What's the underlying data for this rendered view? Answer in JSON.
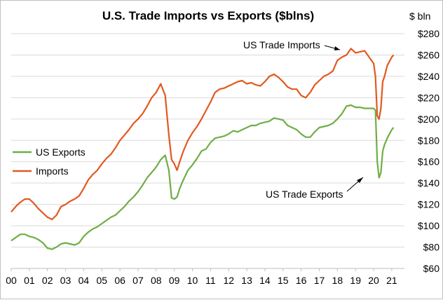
{
  "chart_data": {
    "type": "line",
    "title": "U.S. Trade Imports vs Exports ($blns)",
    "y_unit_label": "$ bln",
    "ylim": [
      60,
      280
    ],
    "xlim": [
      2000,
      2021.7
    ],
    "y_ticks": [
      "$60",
      "$80",
      "$100",
      "$120",
      "$140",
      "$160",
      "$180",
      "$200",
      "$220",
      "$240",
      "$260",
      "$280"
    ],
    "y_tick_values": [
      60,
      80,
      100,
      120,
      140,
      160,
      180,
      200,
      220,
      240,
      260,
      280
    ],
    "x_ticks": [
      "00",
      "01",
      "02",
      "03",
      "04",
      "05",
      "06",
      "07",
      "08",
      "09",
      "10",
      "11",
      "12",
      "13",
      "14",
      "15",
      "16",
      "17",
      "18",
      "19",
      "20",
      "21"
    ],
    "x_tick_values": [
      2000,
      2001,
      2002,
      2003,
      2004,
      2005,
      2006,
      2007,
      2008,
      2009,
      2010,
      2011,
      2012,
      2013,
      2014,
      2015,
      2016,
      2017,
      2018,
      2019,
      2020,
      2021
    ],
    "grid": true,
    "legend_position": "left-middle",
    "colors": {
      "exports": "#70ad47",
      "imports": "#e2591f",
      "grid": "#d9d9d9"
    },
    "series": [
      {
        "name": "US Exports",
        "color": "#70ad47",
        "x": [
          2000,
          2000.25,
          2000.5,
          2000.75,
          2001,
          2001.25,
          2001.5,
          2001.75,
          2002,
          2002.25,
          2002.5,
          2002.75,
          2003,
          2003.25,
          2003.5,
          2003.75,
          2004,
          2004.25,
          2004.5,
          2004.75,
          2005,
          2005.25,
          2005.5,
          2005.75,
          2006,
          2006.25,
          2006.5,
          2006.75,
          2007,
          2007.25,
          2007.5,
          2007.75,
          2008,
          2008.25,
          2008.5,
          2008.7,
          2008.85,
          2009,
          2009.15,
          2009.3,
          2009.5,
          2009.75,
          2010,
          2010.25,
          2010.5,
          2010.75,
          2011,
          2011.25,
          2011.5,
          2011.75,
          2012,
          2012.25,
          2012.5,
          2012.75,
          2013,
          2013.25,
          2013.5,
          2013.75,
          2014,
          2014.25,
          2014.5,
          2014.75,
          2015,
          2015.25,
          2015.5,
          2015.75,
          2016,
          2016.25,
          2016.5,
          2016.75,
          2017,
          2017.25,
          2017.5,
          2017.75,
          2018,
          2018.25,
          2018.5,
          2018.75,
          2019,
          2019.25,
          2019.5,
          2019.75,
          2020,
          2020.1,
          2020.2,
          2020.3,
          2020.4,
          2020.5,
          2020.6,
          2020.75,
          2021,
          2021.1
        ],
        "values": [
          86,
          89,
          92,
          92,
          90,
          89,
          87,
          84,
          79,
          78,
          80,
          83,
          84,
          83,
          82,
          84,
          90,
          94,
          97,
          99,
          102,
          105,
          108,
          110,
          114,
          118,
          123,
          127,
          132,
          138,
          145,
          150,
          155,
          162,
          166,
          152,
          126,
          125,
          127,
          135,
          143,
          152,
          157,
          163,
          170,
          172,
          178,
          182,
          183,
          184,
          186,
          189,
          188,
          190,
          192,
          194,
          194,
          196,
          197,
          198,
          201,
          200,
          199,
          194,
          192,
          190,
          186,
          183,
          183,
          188,
          192,
          193,
          194,
          196,
          200,
          205,
          212,
          213,
          211,
          211,
          210,
          210,
          210,
          208,
          160,
          145,
          150,
          170,
          176,
          182,
          190,
          192
        ]
      },
      {
        "name": "Imports",
        "color": "#e2591f",
        "x": [
          2000,
          2000.25,
          2000.5,
          2000.75,
          2001,
          2001.25,
          2001.5,
          2001.75,
          2002,
          2002.25,
          2002.5,
          2002.75,
          2003,
          2003.25,
          2003.5,
          2003.75,
          2004,
          2004.25,
          2004.5,
          2004.75,
          2005,
          2005.25,
          2005.5,
          2005.75,
          2006,
          2006.25,
          2006.5,
          2006.75,
          2007,
          2007.25,
          2007.5,
          2007.75,
          2008,
          2008.25,
          2008.5,
          2008.7,
          2008.85,
          2009,
          2009.15,
          2009.3,
          2009.5,
          2009.75,
          2010,
          2010.25,
          2010.5,
          2010.75,
          2011,
          2011.25,
          2011.5,
          2011.75,
          2012,
          2012.25,
          2012.5,
          2012.75,
          2013,
          2013.25,
          2013.5,
          2013.75,
          2014,
          2014.25,
          2014.5,
          2014.75,
          2015,
          2015.25,
          2015.5,
          2015.75,
          2016,
          2016.25,
          2016.5,
          2016.75,
          2017,
          2017.25,
          2017.5,
          2017.75,
          2018,
          2018.25,
          2018.5,
          2018.75,
          2019,
          2019.25,
          2019.5,
          2019.75,
          2020,
          2020.1,
          2020.2,
          2020.3,
          2020.4,
          2020.5,
          2020.6,
          2020.75,
          2021,
          2021.1
        ],
        "values": [
          113,
          118,
          122,
          125,
          125,
          121,
          116,
          112,
          108,
          106,
          110,
          118,
          120,
          123,
          125,
          128,
          135,
          143,
          148,
          152,
          158,
          163,
          167,
          173,
          180,
          185,
          190,
          196,
          200,
          205,
          212,
          220,
          225,
          233,
          222,
          185,
          162,
          158,
          152,
          160,
          170,
          180,
          187,
          193,
          200,
          208,
          216,
          225,
          228,
          229,
          231,
          233,
          235,
          236,
          233,
          234,
          232,
          231,
          235,
          240,
          242,
          239,
          235,
          230,
          228,
          228,
          222,
          220,
          225,
          232,
          236,
          240,
          242,
          245,
          255,
          258,
          260,
          266,
          262,
          263,
          264,
          258,
          252,
          240,
          203,
          200,
          210,
          235,
          240,
          250,
          258,
          260
        ]
      }
    ],
    "legend": {
      "exports_label": "US Exports",
      "imports_label": "Imports"
    },
    "annotations": {
      "imports": "US Trade Imports",
      "exports": "US Trade Exports"
    }
  }
}
